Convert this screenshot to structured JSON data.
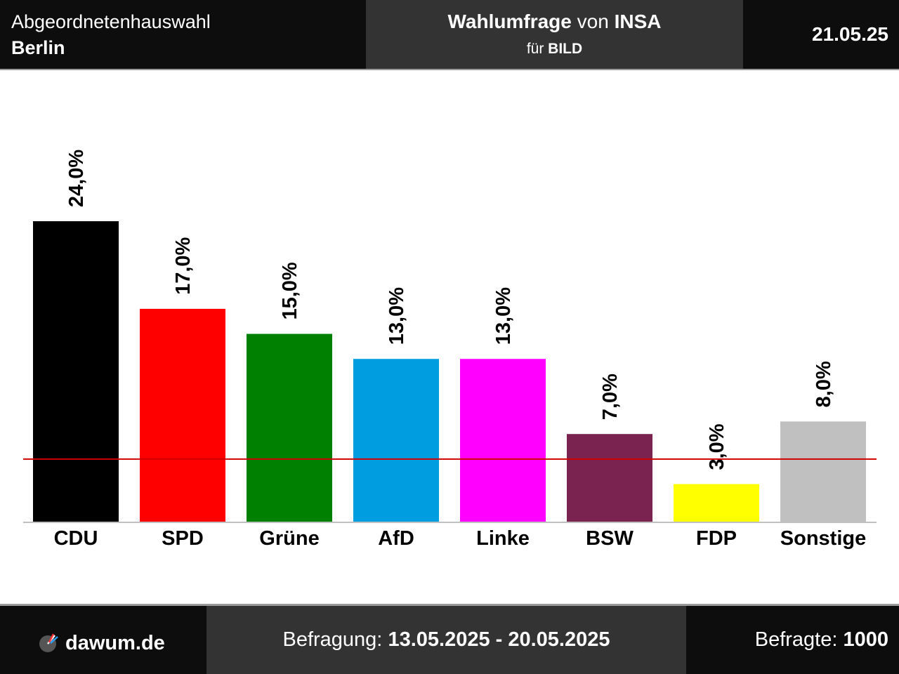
{
  "header": {
    "election_type": "Abgeordnetenhauswahl",
    "region": "Berlin",
    "poll_title_word": "Wahlumfrage",
    "poll_title_von": "von",
    "institute": "INSA",
    "client_prefix": "für",
    "client": "BILD",
    "date": "21.05.25"
  },
  "footer": {
    "site": "dawum.de",
    "period_label": "Befragung:",
    "period_value": "13.05.2025 - 20.05.2025",
    "respondents_label": "Befragte:",
    "respondents_value": "1000"
  },
  "chart_data": {
    "type": "bar",
    "categories": [
      "CDU",
      "SPD",
      "Grüne",
      "AfD",
      "Linke",
      "BSW",
      "FDP",
      "Sonstige"
    ],
    "values": [
      24.0,
      17.0,
      15.0,
      13.0,
      13.0,
      7.0,
      3.0,
      8.0
    ],
    "value_labels": [
      "24,0%",
      "17,0%",
      "15,0%",
      "13,0%",
      "13,0%",
      "7,0%",
      "3,0%",
      "8,0%"
    ],
    "colors": [
      "#000000",
      "#ff0000",
      "#008000",
      "#009ee0",
      "#ff00ff",
      "#7a2350",
      "#ffff00",
      "#c0c0c0"
    ],
    "threshold": 5.0,
    "threshold_color": "#d00000",
    "axis_color": "#c0c0c0",
    "ylim": [
      0,
      24.0
    ]
  }
}
